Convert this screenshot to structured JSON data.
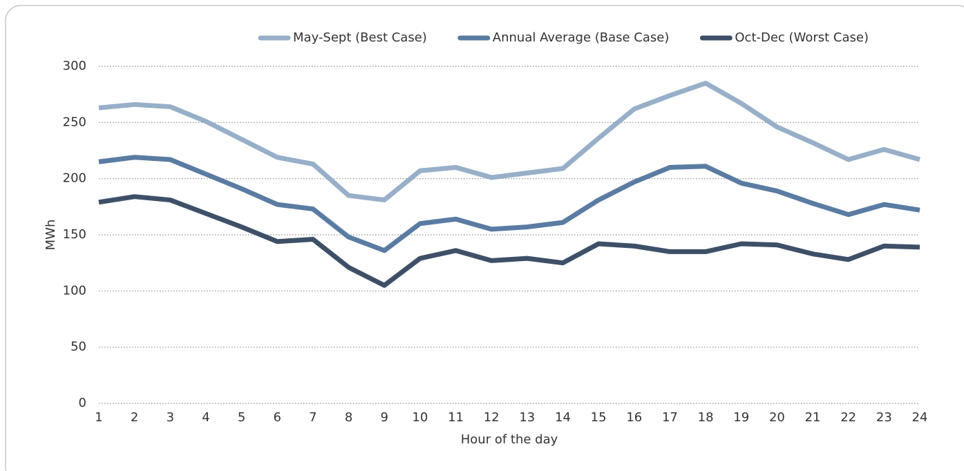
{
  "chart_data": {
    "type": "line",
    "x_label": "Hour of the day",
    "y_label": "MWh",
    "categories": [
      "1",
      "2",
      "3",
      "4",
      "5",
      "6",
      "7",
      "8",
      "9",
      "10",
      "11",
      "12",
      "13",
      "14",
      "15",
      "16",
      "17",
      "18",
      "19",
      "20",
      "21",
      "22",
      "23",
      "24"
    ],
    "series": [
      {
        "name": "May-Sept (Best Case)",
        "color": "#97afc8",
        "values": [
          263,
          266,
          264,
          251,
          235,
          219,
          213,
          185,
          181,
          207,
          210,
          201,
          205,
          209,
          236,
          262,
          274,
          285,
          267,
          246,
          232,
          217,
          226,
          217
        ]
      },
      {
        "name": "Annual Average (Base Case)",
        "color": "#5a7ba2",
        "values": [
          215,
          219,
          217,
          204,
          191,
          177,
          173,
          148,
          136,
          160,
          164,
          155,
          157,
          161,
          181,
          197,
          210,
          211,
          196,
          189,
          178,
          168,
          177,
          172
        ]
      },
      {
        "name": "Oct-Dec (Worst Case)",
        "color": "#3e5068",
        "values": [
          179,
          184,
          181,
          169,
          157,
          144,
          146,
          121,
          105,
          129,
          136,
          127,
          129,
          125,
          142,
          140,
          135,
          135,
          142,
          141,
          133,
          128,
          140,
          139
        ]
      }
    ],
    "ylim": [
      0,
      300
    ],
    "yticks": [
      0,
      50,
      100,
      150,
      200,
      250,
      300
    ],
    "grid": true
  }
}
